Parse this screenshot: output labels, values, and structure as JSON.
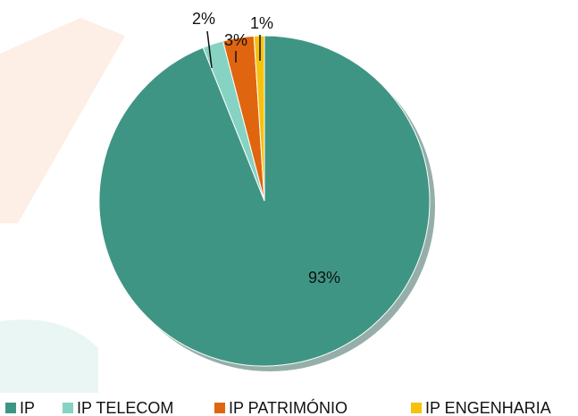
{
  "chart_data": {
    "type": "pie",
    "categories": [
      "IP",
      "IP TELECOM",
      "IP PATRIMÓNIO",
      "IP ENGENHARIA"
    ],
    "values": [
      93,
      2,
      3,
      1
    ],
    "value_labels": [
      "93%",
      "2%",
      "3%",
      "1%"
    ],
    "colors": [
      "#3f9584",
      "#86d3c3",
      "#e0650f",
      "#f7c10d"
    ],
    "legend": "bottom"
  }
}
